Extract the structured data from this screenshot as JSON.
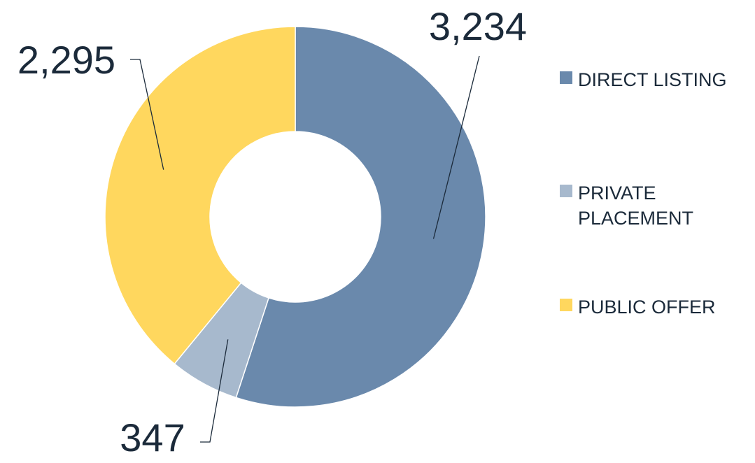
{
  "chart_data": {
    "type": "donut",
    "categories": [
      "DIRECT LISTING",
      "PRIVATE PLACEMENT",
      "PUBLIC OFFER"
    ],
    "values": [
      3234,
      347,
      2295
    ],
    "value_labels": [
      "3,234",
      "347",
      "2,295"
    ],
    "colors": [
      "#6a89ac",
      "#a7b9cd",
      "#ffd75e"
    ],
    "legend": "right"
  }
}
